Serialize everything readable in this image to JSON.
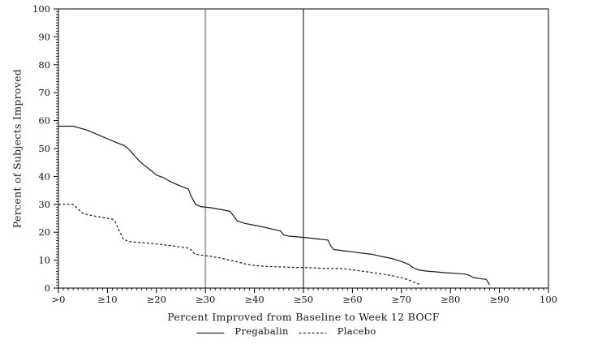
{
  "chart_data": {
    "type": "line",
    "title": "",
    "xlabel": "Percent Improved from Baseline to Week 12 BOCF",
    "ylabel": "Percent of Subjects Improved",
    "xlim": [
      0,
      100
    ],
    "ylim": [
      0,
      100
    ],
    "grid": false,
    "frame": true,
    "minor_tick_step": 1,
    "colors": {
      "line": "#1a1a1a",
      "axis": "#000000",
      "background": "#ffffff",
      "ref_line_30": "#a8a8a8",
      "ref_line_50": "#4d4d4d"
    },
    "x_major_ticks": [
      {
        "value": 0,
        "label": ">0"
      },
      {
        "value": 10,
        "label": "≥10"
      },
      {
        "value": 20,
        "label": "≥20"
      },
      {
        "value": 30,
        "label": "≥30"
      },
      {
        "value": 40,
        "label": "≥40"
      },
      {
        "value": 50,
        "label": "≥50"
      },
      {
        "value": 60,
        "label": "≥60"
      },
      {
        "value": 70,
        "label": "≥70"
      },
      {
        "value": 80,
        "label": "≥80"
      },
      {
        "value": 90,
        "label": "≥90"
      },
      {
        "value": 100,
        "label": "100"
      }
    ],
    "y_major_ticks": [
      {
        "value": 0,
        "label": "0"
      },
      {
        "value": 10,
        "label": "10"
      },
      {
        "value": 20,
        "label": "20"
      },
      {
        "value": 30,
        "label": "30"
      },
      {
        "value": 40,
        "label": "40"
      },
      {
        "value": 50,
        "label": "50"
      },
      {
        "value": 60,
        "label": "60"
      },
      {
        "value": 70,
        "label": "70"
      },
      {
        "value": 80,
        "label": "80"
      },
      {
        "value": 90,
        "label": "90"
      },
      {
        "value": 100,
        "label": "100"
      }
    ],
    "reference_lines": [
      {
        "x": 30,
        "color": "#a8a8a8",
        "width": 2
      },
      {
        "x": 50,
        "color": "#4d4d4d",
        "width": 1.4
      }
    ],
    "legend": [
      {
        "label": "Pregabalin",
        "style": "solid"
      },
      {
        "label": "Placebo",
        "style": "dashed"
      }
    ],
    "series": [
      {
        "name": "Pregabalin",
        "style": "solid",
        "color": "#1a1a1a",
        "points": [
          [
            0,
            58
          ],
          [
            3,
            58
          ],
          [
            4,
            57.5
          ],
          [
            6,
            56.5
          ],
          [
            8,
            55
          ],
          [
            10,
            53.5
          ],
          [
            12,
            52
          ],
          [
            13.5,
            51
          ],
          [
            14.5,
            49.5
          ],
          [
            15.5,
            47.5
          ],
          [
            16.5,
            45.5
          ],
          [
            17.5,
            44
          ],
          [
            19,
            42
          ],
          [
            20,
            40.5
          ],
          [
            21.5,
            39.5
          ],
          [
            23,
            38
          ],
          [
            25,
            36.5
          ],
          [
            26.5,
            35.5
          ],
          [
            27.2,
            32.5
          ],
          [
            28,
            30
          ],
          [
            29,
            29.2
          ],
          [
            31,
            28.8
          ],
          [
            33,
            28.2
          ],
          [
            35,
            27.5
          ],
          [
            35.7,
            26
          ],
          [
            36.5,
            24
          ],
          [
            38,
            23.2
          ],
          [
            40,
            22.5
          ],
          [
            42,
            21.8
          ],
          [
            44,
            21
          ],
          [
            45.3,
            20.5
          ],
          [
            46,
            19
          ],
          [
            47,
            18.6
          ],
          [
            49,
            18.3
          ],
          [
            51,
            18
          ],
          [
            53,
            17.6
          ],
          [
            55,
            17.2
          ],
          [
            55.6,
            15
          ],
          [
            56.2,
            13.8
          ],
          [
            58,
            13.4
          ],
          [
            60,
            13
          ],
          [
            62,
            12.5
          ],
          [
            64,
            12.1
          ],
          [
            66,
            11.3
          ],
          [
            68,
            10.6
          ],
          [
            70,
            9.5
          ],
          [
            71.5,
            8.5
          ],
          [
            72.3,
            7.4
          ],
          [
            73.5,
            6.5
          ],
          [
            75,
            6.1
          ],
          [
            77,
            5.8
          ],
          [
            79,
            5.5
          ],
          [
            81,
            5.3
          ],
          [
            83,
            5
          ],
          [
            83.8,
            4.6
          ],
          [
            84.6,
            3.8
          ],
          [
            86,
            3.4
          ],
          [
            87.3,
            3.1
          ],
          [
            87.7,
            2
          ],
          [
            88,
            1.1
          ]
        ]
      },
      {
        "name": "Placebo",
        "style": "dashed",
        "color": "#1a1a1a",
        "points": [
          [
            0,
            30
          ],
          [
            3,
            30
          ],
          [
            4,
            28.3
          ],
          [
            5,
            26.7
          ],
          [
            7,
            25.9
          ],
          [
            9,
            25.3
          ],
          [
            11,
            24.7
          ],
          [
            11.6,
            23.7
          ],
          [
            12.4,
            20.5
          ],
          [
            13.3,
            17.5
          ],
          [
            14.3,
            16.7
          ],
          [
            16,
            16.4
          ],
          [
            19,
            16
          ],
          [
            22,
            15.4
          ],
          [
            25,
            14.7
          ],
          [
            26.5,
            14.3
          ],
          [
            27.2,
            13.5
          ],
          [
            27.8,
            12.2
          ],
          [
            29,
            11.8
          ],
          [
            31,
            11.4
          ],
          [
            33,
            10.8
          ],
          [
            35,
            10
          ],
          [
            37,
            9.2
          ],
          [
            38.5,
            8.5
          ],
          [
            40,
            8.1
          ],
          [
            42,
            7.8
          ],
          [
            45,
            7.6
          ],
          [
            48,
            7.4
          ],
          [
            51,
            7.3
          ],
          [
            54,
            7.1
          ],
          [
            57,
            7
          ],
          [
            59,
            6.8
          ],
          [
            61,
            6.3
          ],
          [
            63,
            5.8
          ],
          [
            65,
            5.3
          ],
          [
            67,
            4.8
          ],
          [
            68.8,
            4.2
          ],
          [
            70.2,
            3.6
          ],
          [
            71.5,
            2.9
          ],
          [
            72.7,
            2
          ],
          [
            74,
            1.1
          ]
        ]
      }
    ]
  }
}
